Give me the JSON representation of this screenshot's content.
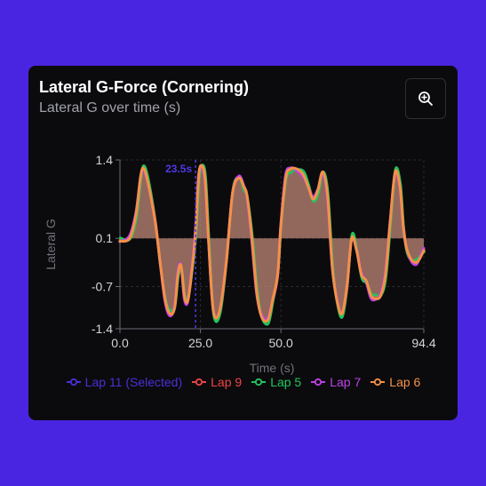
{
  "card": {
    "title": "Lateral G-Force (Cornering)",
    "subtitle": "Lateral G over time (s)"
  },
  "icons": {
    "zoom": "zoom-in-icon"
  },
  "chart_data": {
    "type": "line",
    "xlabel": "Time (s)",
    "ylabel": "Lateral G",
    "xlim": [
      0,
      94.4
    ],
    "ylim": [
      -1.4,
      1.4
    ],
    "x_ticks": [
      "0.0",
      "25.0",
      "50.0",
      "94.4"
    ],
    "y_ticks": [
      "1.4",
      "0.1",
      "-0.7",
      "-1.4"
    ],
    "x_tick_values": [
      0,
      25,
      50,
      94.4
    ],
    "y_tick_values": [
      1.4,
      0.1,
      -0.7,
      -1.4
    ],
    "baseline": 0.1,
    "marker": {
      "x": 23.5,
      "label": "23.5s",
      "color": "#4f38e8"
    },
    "area_fill": "#c08878",
    "area_fill_series": "Lap 6",
    "legend_position": "bottom",
    "series": [
      {
        "name": "Lap 11 (Selected)",
        "color": "#4a2fd8",
        "offset": 0.0
      },
      {
        "name": "Lap 9",
        "color": "#ef4444",
        "offset": 0.03
      },
      {
        "name": "Lap 5",
        "color": "#22c55e",
        "offset": 0.06
      },
      {
        "name": "Lap 7",
        "color": "#c040e8",
        "offset": -0.04
      },
      {
        "name": "Lap 6",
        "color": "#f59045",
        "offset": 0.0
      }
    ],
    "x": [
      0,
      3,
      5,
      6.5,
      7.5,
      9,
      11,
      12.5,
      14,
      15.5,
      17,
      18,
      19,
      20,
      21,
      22,
      23.5,
      24.5,
      25.5,
      26.5,
      27.5,
      29,
      31,
      33,
      35,
      37,
      38.5,
      39.5,
      41,
      42.5,
      44,
      46,
      47.5,
      49,
      50,
      51.5,
      53,
      55,
      57,
      58.5,
      60,
      61.5,
      63,
      64.5,
      66,
      67.5,
      69,
      70.5,
      72,
      73.5,
      75,
      76.5,
      78,
      79.5,
      81,
      82.5,
      84,
      85.5,
      87,
      88,
      89,
      90.5,
      92,
      93,
      94.4
    ],
    "values": [
      0.05,
      0.1,
      0.5,
      1.15,
      1.25,
      0.95,
      0.35,
      -0.3,
      -0.9,
      -1.15,
      -1.05,
      -0.5,
      -0.35,
      -0.85,
      -0.95,
      -0.6,
      0.2,
      1.15,
      1.3,
      1.05,
      0.1,
      -1.1,
      -1.1,
      -0.3,
      0.85,
      1.1,
      0.95,
      0.8,
      0.1,
      -0.8,
      -1.2,
      -1.25,
      -0.9,
      -0.5,
      0.3,
      1.1,
      1.25,
      1.25,
      1.15,
      0.95,
      0.75,
      0.9,
      1.2,
      0.8,
      -0.4,
      -0.95,
      -1.15,
      -0.7,
      0.1,
      -0.1,
      -0.5,
      -0.6,
      -0.85,
      -0.9,
      -0.85,
      -0.5,
      0.4,
      1.2,
      0.95,
      0.3,
      -0.05,
      -0.25,
      -0.3,
      -0.25,
      -0.1
    ]
  }
}
